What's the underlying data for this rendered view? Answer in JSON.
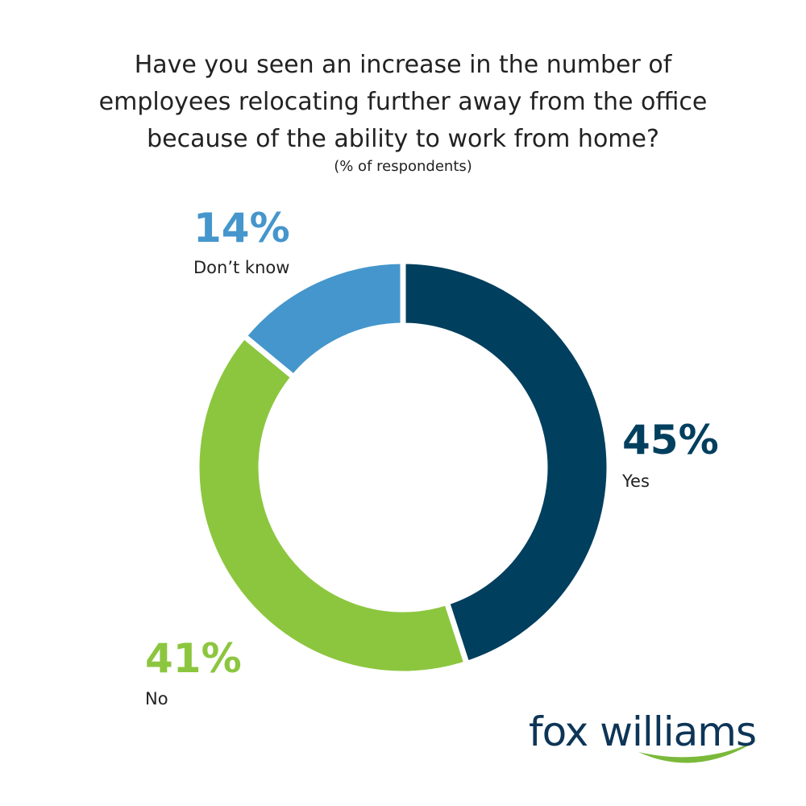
{
  "chart_data": {
    "type": "donut",
    "title": "Have you seen an increase in the number of employees relocating further away from the office because of the ability to work from home?",
    "subtitle": "(% of respondents)",
    "categories": [
      "Yes",
      "No",
      "Don’t know"
    ],
    "values": [
      45,
      41,
      14
    ],
    "value_labels": [
      "45%",
      "41%",
      "14%"
    ],
    "colors": [
      "#003f5e",
      "#8cc63f",
      "#4596cc"
    ]
  },
  "logo": "fox williams"
}
